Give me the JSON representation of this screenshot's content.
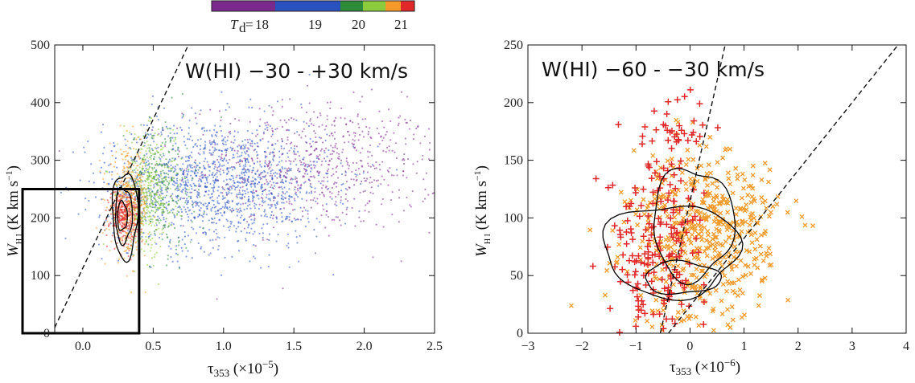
{
  "colorbar": {
    "label_symbol": "T",
    "label_sub": "d",
    "label_eq": "=",
    "ticks": [
      "18",
      "19",
      "20",
      "21"
    ],
    "colors": [
      "#7a2a8c",
      "#2a52be",
      "#2e8b3a",
      "#8ccc3c",
      "#f39a2a",
      "#e0282a"
    ]
  },
  "chart_data": [
    {
      "type": "scatter",
      "title": "W(HI) −30 - +30 km/s",
      "xlabel_main": "τ",
      "xlabel_sub": "353",
      "xlabel_tail": " (×10",
      "xlabel_exp": "−5",
      "xlabel_close": ")",
      "ylabel_main": "W",
      "ylabel_sub": "H I",
      "ylabel_tail": " (K km s",
      "ylabel_exp": "−1",
      "ylabel_close": ")",
      "xlim": [
        -0.2,
        2.5
      ],
      "ylim": [
        0,
        500
      ],
      "xticks": [
        "0.0",
        "0.5",
        "1.0",
        "1.5",
        "2.0",
        "2.5"
      ],
      "xtick_values": [
        0.0,
        0.5,
        1.0,
        1.5,
        2.0,
        2.5
      ],
      "yticks": [
        "0",
        "100",
        "200",
        "300",
        "400",
        "500"
      ],
      "ytick_values": [
        0,
        100,
        200,
        300,
        400,
        500
      ],
      "dashed_lines": [
        [
          [
            -0.2,
            10
          ],
          [
            0.75,
            500
          ]
        ]
      ],
      "box": {
        "x": [
          -0.2,
          0.4
        ],
        "y": [
          0,
          250
        ]
      },
      "clusters": [
        {
          "td": "18",
          "color": "#7a2a8c",
          "cx": 1.65,
          "cy": 290,
          "sx": 0.45,
          "sy": 55,
          "n": 750
        },
        {
          "td": "19",
          "color": "#2a52be",
          "cx": 0.95,
          "cy": 260,
          "sx": 0.4,
          "sy": 55,
          "n": 1400
        },
        {
          "td": "20",
          "color": "#2e8b3a",
          "cx": 0.55,
          "cy": 255,
          "sx": 0.12,
          "sy": 55,
          "n": 300
        },
        {
          "td": "20-21",
          "color": "#8ccc3c",
          "cx": 0.45,
          "cy": 240,
          "sx": 0.1,
          "sy": 50,
          "n": 380
        },
        {
          "td": "21",
          "color": "#f39a2a",
          "cx": 0.33,
          "cy": 225,
          "sx": 0.07,
          "sy": 45,
          "n": 420
        },
        {
          "td": "21",
          "color": "#e0282a",
          "cx": 0.29,
          "cy": 205,
          "sx": 0.05,
          "sy": 22,
          "n": 320
        }
      ],
      "contours": [
        {
          "cx": 0.3,
          "cy": 205,
          "rx": 0.09,
          "ry": 75
        },
        {
          "cx": 0.29,
          "cy": 205,
          "rx": 0.06,
          "ry": 48
        },
        {
          "cx": 0.28,
          "cy": 203,
          "rx": 0.035,
          "ry": 25
        }
      ]
    },
    {
      "type": "scatter",
      "title": "W(HI) −60 - −30 km/s",
      "xlabel_main": "τ",
      "xlabel_sub": "353",
      "xlabel_tail": " (×10",
      "xlabel_exp": "−6",
      "xlabel_close": ")",
      "ylabel_main": "W",
      "ylabel_sub": "H I",
      "ylabel_tail": " (K km s",
      "ylabel_exp": "−1",
      "ylabel_close": ")",
      "xlim": [
        -3,
        4
      ],
      "ylim": [
        0,
        250
      ],
      "xticks": [
        "−3",
        "−2",
        "−1",
        "0",
        "1",
        "2",
        "3",
        "4"
      ],
      "xtick_values": [
        -3,
        -2,
        -1,
        0,
        1,
        2,
        3,
        4
      ],
      "yticks": [
        "0",
        "50",
        "100",
        "150",
        "200",
        "250"
      ],
      "ytick_values": [
        0,
        50,
        100,
        150,
        200,
        250
      ],
      "dashed_lines": [
        [
          [
            -0.55,
            0
          ],
          [
            0.65,
            250
          ]
        ],
        [
          [
            -0.4,
            0
          ],
          [
            3.85,
            250
          ]
        ]
      ],
      "clusters": [
        {
          "td": "21",
          "marker": "x",
          "color": "#f39a2a",
          "cx": 0.15,
          "cy": 80,
          "sx": 0.65,
          "sy": 38,
          "n": 480
        },
        {
          "td": "21",
          "marker": "x",
          "color": "#f39a2a",
          "cx": 1.0,
          "cy": 105,
          "sx": 0.4,
          "sy": 20,
          "n": 60
        },
        {
          "td": "21",
          "marker": "+",
          "color": "#e0282a",
          "cx": -0.6,
          "cy": 70,
          "sx": 0.45,
          "sy": 40,
          "n": 190
        },
        {
          "td": "21",
          "marker": "+",
          "color": "#e0282a",
          "cx": -0.3,
          "cy": 175,
          "sx": 0.35,
          "sy": 18,
          "n": 40
        }
      ],
      "contours": [
        {
          "cx": -0.35,
          "cy": 72,
          "rx": 1.25,
          "ry": 40
        },
        {
          "cx": 0.05,
          "cy": 95,
          "rx": 0.75,
          "ry": 48
        },
        {
          "cx": -0.15,
          "cy": 48,
          "rx": 0.7,
          "ry": 14
        }
      ]
    }
  ]
}
